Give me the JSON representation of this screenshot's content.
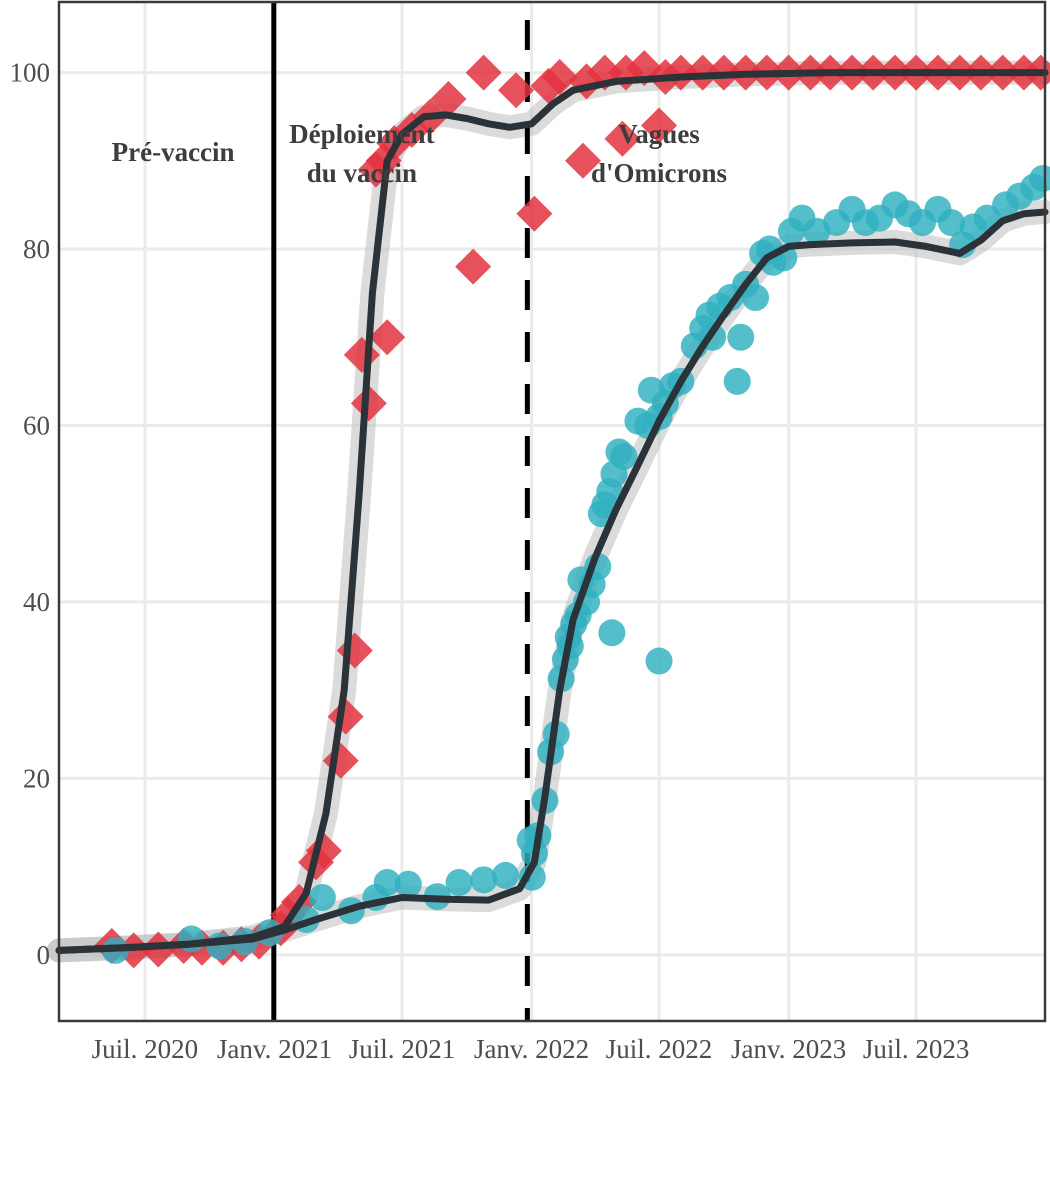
{
  "chart_data": {
    "type": "scatter",
    "xlim": [
      "2020-03-01",
      "2023-12-31"
    ],
    "ylim": [
      -7.5,
      108
    ],
    "x_ticks": [
      {
        "date": "2020-07-01",
        "label": "Juil. 2020"
      },
      {
        "date": "2021-01-01",
        "label": "Janv. 2021"
      },
      {
        "date": "2021-07-01",
        "label": "Juil. 2021"
      },
      {
        "date": "2022-01-01",
        "label": "Janv. 2022"
      },
      {
        "date": "2022-07-01",
        "label": "Juil. 2022"
      },
      {
        "date": "2023-01-01",
        "label": "Janv. 2023"
      },
      {
        "date": "2023-07-01",
        "label": "Juil. 2023"
      }
    ],
    "y_ticks": [
      0,
      20,
      40,
      60,
      80,
      100
    ],
    "grid": true,
    "legend": "none",
    "reference_lines": [
      {
        "date": "2020-12-31",
        "style": "solid",
        "color": "#000000"
      },
      {
        "date": "2021-12-26",
        "style": "dashed",
        "color": "#000000"
      }
    ],
    "annotations": [
      {
        "lines": [
          "Pré-vaccin"
        ],
        "date": "2020-08-10",
        "y": 90
      },
      {
        "lines": [
          "Déploiement",
          "du vaccin"
        ],
        "date": "2021-05-05",
        "y": 92
      },
      {
        "lines": [
          "Vagues",
          "d'Omicrons"
        ],
        "date": "2022-07-01",
        "y": 92
      }
    ],
    "colors": {
      "diamond": "#e2323f",
      "circle": "#2fb0bf",
      "trend": "#2b3238",
      "band": "#bdbdbd"
    },
    "series": [
      {
        "marker": "diamond",
        "points": [
          [
            "2020-05-15",
            1
          ],
          [
            "2020-06-15",
            0.5
          ],
          [
            "2020-07-20",
            0.6
          ],
          [
            "2020-08-25",
            1
          ],
          [
            "2020-09-20",
            0.8
          ],
          [
            "2020-10-20",
            0.8
          ],
          [
            "2020-11-15",
            1.2
          ],
          [
            "2020-12-10",
            1.5
          ],
          [
            "2021-01-10",
            3
          ],
          [
            "2021-01-20",
            4.5
          ],
          [
            "2021-02-05",
            6
          ],
          [
            "2021-03-01",
            10.5
          ],
          [
            "2021-03-12",
            11.8
          ],
          [
            "2021-04-05",
            22
          ],
          [
            "2021-04-12",
            27
          ],
          [
            "2021-04-25",
            34.5
          ],
          [
            "2021-05-05",
            68
          ],
          [
            "2021-05-15",
            62.5
          ],
          [
            "2021-06-10",
            70
          ],
          [
            "2021-05-25",
            89
          ],
          [
            "2021-06-05",
            90
          ],
          [
            "2021-06-20",
            92
          ],
          [
            "2021-07-15",
            93.5
          ],
          [
            "2021-08-10",
            95
          ],
          [
            "2021-09-05",
            97
          ],
          [
            "2021-10-10",
            78
          ],
          [
            "2021-10-25",
            100
          ],
          [
            "2021-12-10",
            98
          ],
          [
            "2022-01-05",
            84
          ],
          [
            "2022-01-25",
            98.5
          ],
          [
            "2022-02-10",
            99.5
          ],
          [
            "2022-03-15",
            90
          ],
          [
            "2022-03-20",
            99
          ],
          [
            "2022-04-15",
            100
          ],
          [
            "2022-05-10",
            92.5
          ],
          [
            "2022-05-15",
            100
          ],
          [
            "2022-06-10",
            100.5
          ],
          [
            "2022-07-01",
            94
          ],
          [
            "2022-07-10",
            99.5
          ],
          [
            "2022-08-01",
            100
          ],
          [
            "2022-09-01",
            100
          ],
          [
            "2022-10-01",
            100
          ],
          [
            "2022-11-01",
            100
          ],
          [
            "2022-12-01",
            100
          ],
          [
            "2023-01-01",
            100
          ],
          [
            "2023-02-01",
            100
          ],
          [
            "2023-03-01",
            100
          ],
          [
            "2023-04-01",
            100
          ],
          [
            "2023-05-01",
            100
          ],
          [
            "2023-06-01",
            100
          ],
          [
            "2023-07-01",
            100
          ],
          [
            "2023-08-01",
            100
          ],
          [
            "2023-09-01",
            100
          ],
          [
            "2023-10-01",
            100
          ],
          [
            "2023-11-01",
            100
          ],
          [
            "2023-12-01",
            100
          ],
          [
            "2023-12-25",
            100
          ]
        ]
      },
      {
        "marker": "circle",
        "points": [
          [
            "2020-05-20",
            0.5
          ],
          [
            "2020-09-05",
            1.8
          ],
          [
            "2020-10-15",
            1
          ],
          [
            "2020-11-20",
            1.5
          ],
          [
            "2020-12-25",
            2.5
          ],
          [
            "2021-02-15",
            4
          ],
          [
            "2021-03-10",
            6.5
          ],
          [
            "2021-04-20",
            5
          ],
          [
            "2021-05-25",
            6.5
          ],
          [
            "2021-06-10",
            8.2
          ],
          [
            "2021-07-10",
            8
          ],
          [
            "2021-08-20",
            6.6
          ],
          [
            "2021-09-20",
            8.2
          ],
          [
            "2021-10-25",
            8.5
          ],
          [
            "2021-11-25",
            9
          ],
          [
            "2021-12-30",
            13
          ],
          [
            "2022-01-05",
            11.5
          ],
          [
            "2022-01-10",
            13.5
          ],
          [
            "2022-01-02",
            8.8
          ],
          [
            "2022-01-20",
            17.5
          ],
          [
            "2022-01-28",
            23
          ],
          [
            "2022-02-05",
            25
          ],
          [
            "2022-02-12",
            31.3
          ],
          [
            "2022-02-18",
            33.5
          ],
          [
            "2022-02-22",
            36
          ],
          [
            "2022-02-25",
            35
          ],
          [
            "2022-03-02",
            37.5
          ],
          [
            "2022-03-08",
            38.5
          ],
          [
            "2022-03-12",
            42.5
          ],
          [
            "2022-03-20",
            40
          ],
          [
            "2022-03-28",
            42
          ],
          [
            "2022-04-05",
            44
          ],
          [
            "2022-04-10",
            50
          ],
          [
            "2022-04-15",
            51
          ],
          [
            "2022-04-22",
            52.5
          ],
          [
            "2022-04-28",
            54.5
          ],
          [
            "2022-05-05",
            57
          ],
          [
            "2022-05-12",
            56.5
          ],
          [
            "2022-04-25",
            36.5
          ],
          [
            "2022-06-01",
            60.5
          ],
          [
            "2022-06-15",
            60
          ],
          [
            "2022-06-20",
            64
          ],
          [
            "2022-07-01",
            61
          ],
          [
            "2022-07-10",
            62.5
          ],
          [
            "2022-07-20",
            64.5
          ],
          [
            "2022-08-01",
            65
          ],
          [
            "2022-07-01",
            33.3
          ],
          [
            "2022-08-20",
            69
          ],
          [
            "2022-09-01",
            71
          ],
          [
            "2022-09-10",
            72.5
          ],
          [
            "2022-09-15",
            70
          ],
          [
            "2022-09-25",
            73.5
          ],
          [
            "2022-10-10",
            74.5
          ],
          [
            "2022-10-20",
            65
          ],
          [
            "2022-10-25",
            70
          ],
          [
            "2022-11-01",
            76
          ],
          [
            "2022-11-15",
            74.5
          ],
          [
            "2022-11-25",
            79.5
          ],
          [
            "2022-12-05",
            80
          ],
          [
            "2022-12-10",
            78.5
          ],
          [
            "2022-12-25",
            79
          ],
          [
            "2023-01-05",
            82
          ],
          [
            "2023-01-20",
            83.5
          ],
          [
            "2023-02-10",
            82
          ],
          [
            "2023-03-10",
            83
          ],
          [
            "2023-04-01",
            84.5
          ],
          [
            "2023-04-20",
            83
          ],
          [
            "2023-05-10",
            83.5
          ],
          [
            "2023-06-01",
            85
          ],
          [
            "2023-06-20",
            84
          ],
          [
            "2023-07-10",
            83
          ],
          [
            "2023-08-01",
            84.5
          ],
          [
            "2023-08-20",
            83
          ],
          [
            "2023-09-05",
            80.5
          ],
          [
            "2023-09-20",
            82.5
          ],
          [
            "2023-10-10",
            83.5
          ],
          [
            "2023-11-05",
            85
          ],
          [
            "2023-11-25",
            86
          ],
          [
            "2023-12-15",
            87
          ],
          [
            "2023-12-28",
            88
          ]
        ]
      }
    ],
    "trend_lines": [
      {
        "follows": "diamond",
        "points": [
          [
            "2020-03-01",
            0.5
          ],
          [
            "2020-06-01",
            0.8
          ],
          [
            "2020-09-01",
            1.2
          ],
          [
            "2020-12-01",
            2
          ],
          [
            "2021-01-15",
            3.2
          ],
          [
            "2021-02-15",
            7
          ],
          [
            "2021-03-15",
            16
          ],
          [
            "2021-04-10",
            30
          ],
          [
            "2021-05-01",
            52
          ],
          [
            "2021-05-20",
            75
          ],
          [
            "2021-06-10",
            90
          ],
          [
            "2021-07-01",
            93
          ],
          [
            "2021-08-01",
            95
          ],
          [
            "2021-09-01",
            95.2
          ],
          [
            "2021-10-01",
            94.8
          ],
          [
            "2021-11-01",
            94.2
          ],
          [
            "2021-12-01",
            93.8
          ],
          [
            "2022-01-01",
            94.2
          ],
          [
            "2022-02-01",
            96.5
          ],
          [
            "2022-03-01",
            98
          ],
          [
            "2022-05-01",
            99
          ],
          [
            "2022-08-01",
            99.5
          ],
          [
            "2022-11-01",
            99.8
          ],
          [
            "2023-03-01",
            100
          ],
          [
            "2023-12-31",
            100
          ]
        ]
      },
      {
        "follows": "circle",
        "points": [
          [
            "2020-03-01",
            0.5
          ],
          [
            "2020-06-01",
            0.8
          ],
          [
            "2020-09-01",
            1.2
          ],
          [
            "2020-12-01",
            1.8
          ],
          [
            "2021-01-15",
            2.8
          ],
          [
            "2021-03-01",
            4
          ],
          [
            "2021-05-01",
            5.5
          ],
          [
            "2021-07-01",
            6.5
          ],
          [
            "2021-09-01",
            6.3
          ],
          [
            "2021-11-01",
            6.2
          ],
          [
            "2021-12-15",
            7.5
          ],
          [
            "2022-01-05",
            10.5
          ],
          [
            "2022-01-20",
            18
          ],
          [
            "2022-02-10",
            30
          ],
          [
            "2022-03-01",
            38
          ],
          [
            "2022-04-01",
            45
          ],
          [
            "2022-05-01",
            50.5
          ],
          [
            "2022-06-01",
            55.5
          ],
          [
            "2022-07-01",
            60.5
          ],
          [
            "2022-08-01",
            65
          ],
          [
            "2022-09-01",
            69
          ],
          [
            "2022-10-01",
            72.5
          ],
          [
            "2022-11-01",
            76
          ],
          [
            "2022-12-01",
            79
          ],
          [
            "2023-01-01",
            80.3
          ],
          [
            "2023-02-01",
            80.5
          ],
          [
            "2023-04-01",
            80.7
          ],
          [
            "2023-06-01",
            80.8
          ],
          [
            "2023-07-15",
            80.3
          ],
          [
            "2023-09-01",
            79.5
          ],
          [
            "2023-10-01",
            81
          ],
          [
            "2023-11-01",
            83.2
          ],
          [
            "2023-12-01",
            84
          ],
          [
            "2023-12-31",
            84.2
          ]
        ]
      }
    ]
  }
}
